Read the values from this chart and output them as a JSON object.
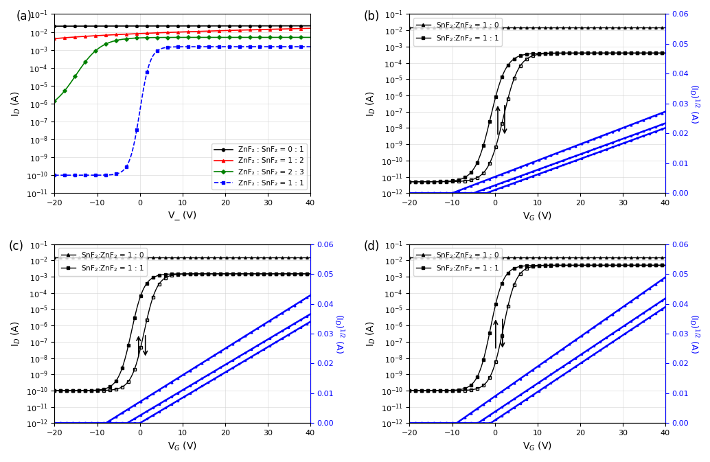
{
  "panel_a": {
    "label": "(a)",
    "xlabel": "V_ (V)",
    "ylabel": "I_D (A)",
    "xlim": [
      -20,
      40
    ],
    "ylim": [
      1e-11,
      0.1
    ],
    "curves": [
      {
        "label": "ZnF₂ : SnF₂ = 0 : 1",
        "color": "black",
        "ls": "-",
        "marker": "o",
        "off": 0.02,
        "on": 0.022,
        "vth": -30,
        "sw": 999
      },
      {
        "label": "ZnF₂ : SnF₂ = 1 : 2",
        "color": "red",
        "ls": "-",
        "marker": "^",
        "off": 0.0008,
        "on": 0.016,
        "vth": -30,
        "sw": 999
      },
      {
        "label": "ZnF₂ : SnF₂ = 2 : 3",
        "color": "green",
        "ls": "-",
        "marker": "D",
        "off": 3e-07,
        "on": 0.005,
        "vth": -15,
        "sw": 3.0
      },
      {
        "label": "ZnF₂ : SnF₂ = 1 : 1",
        "color": "blue",
        "ls": "--",
        "marker": "s",
        "off": 1e-10,
        "on": 0.0015,
        "vth": 0,
        "sw": 1.2
      }
    ]
  },
  "panel_b": {
    "label": "(b)",
    "off_10": 0.015,
    "off_11": 5e-12,
    "on_11": 0.0004,
    "vth_fwd": -1,
    "vth_bwd": 2,
    "sw_fwd": 1.8,
    "sw_bwd": 1.8,
    "sqrt_vth": -5,
    "sqrt_slope": 0.00052,
    "arrow_vg": 1.5,
    "arrow_yl": -8.5,
    "arrow_yh": -6.5,
    "ylim": [
      1e-12,
      0.1
    ],
    "ylim_r": [
      0.0,
      0.06
    ]
  },
  "panel_c": {
    "label": "(c)",
    "off_10": 0.015,
    "off_11": 1e-10,
    "on_11": 0.0015,
    "vth_fwd": -2,
    "vth_bwd": 1,
    "sw_fwd": 1.5,
    "sw_bwd": 1.5,
    "sqrt_vth": -3,
    "sqrt_slope": 0.00085,
    "arrow_vg": 0.5,
    "arrow_yl": -8.0,
    "arrow_yh": -6.5,
    "ylim": [
      1e-12,
      0.1
    ],
    "ylim_r": [
      0.0,
      0.06
    ]
  },
  "panel_d": {
    "label": "(d)",
    "off_10": 0.015,
    "off_11": 1e-10,
    "on_11": 0.005,
    "vth_fwd": -1,
    "vth_bwd": 2,
    "sw_fwd": 1.5,
    "sw_bwd": 1.5,
    "sqrt_vth": -4,
    "sqrt_slope": 0.00095,
    "arrow_vg": 1.0,
    "arrow_yl": -7.5,
    "arrow_yh": -5.5,
    "ylim": [
      1e-12,
      0.1
    ],
    "ylim_r": [
      0.0,
      0.06
    ]
  }
}
